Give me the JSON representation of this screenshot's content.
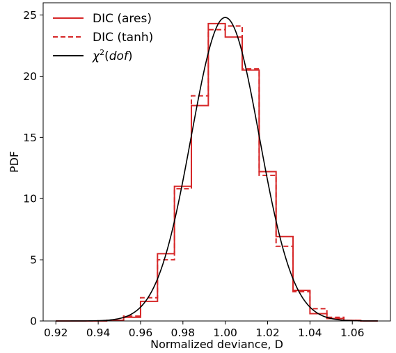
{
  "chart_data": {
    "type": "histogram",
    "xlabel": "Normalized deviance, D",
    "ylabel": "PDF",
    "xlim": [
      0.914,
      1.078
    ],
    "ylim": [
      0,
      26
    ],
    "xticks": [
      0.92,
      0.94,
      0.96,
      0.98,
      1.0,
      1.02,
      1.04,
      1.06
    ],
    "xtick_labels": [
      "0.92",
      "0.94",
      "0.96",
      "0.98",
      "1.00",
      "1.02",
      "1.04",
      "1.06"
    ],
    "yticks": [
      0,
      5,
      10,
      15,
      20,
      25
    ],
    "ytick_labels": [
      "0",
      "5",
      "10",
      "15",
      "20",
      "25"
    ],
    "legend_position": "top-left",
    "grid": false,
    "series": [
      {
        "name": "DIC (ares)",
        "kind": "step",
        "color": "#d62728",
        "dash": "solid",
        "bin_edges": [
          0.92,
          0.928,
          0.936,
          0.944,
          0.952,
          0.96,
          0.968,
          0.976,
          0.984,
          0.992,
          1.0,
          1.008,
          1.016,
          1.024,
          1.032,
          1.04,
          1.048,
          1.056,
          1.064,
          1.072
        ],
        "values": [
          0.0,
          0.0,
          0.0,
          0.05,
          0.3,
          1.6,
          5.5,
          11.0,
          17.6,
          24.3,
          23.2,
          20.5,
          12.2,
          6.9,
          2.5,
          0.6,
          0.2,
          0.05,
          0.0
        ]
      },
      {
        "name": "DIC (tanh)",
        "kind": "step",
        "color": "#d62728",
        "dash": "dashed",
        "bin_edges": [
          0.92,
          0.928,
          0.936,
          0.944,
          0.952,
          0.96,
          0.968,
          0.976,
          0.984,
          0.992,
          1.0,
          1.008,
          1.016,
          1.024,
          1.032,
          1.04,
          1.048,
          1.056,
          1.064,
          1.072
        ],
        "values": [
          0.0,
          0.0,
          0.0,
          0.05,
          0.4,
          1.9,
          5.0,
          10.8,
          18.4,
          23.8,
          24.1,
          20.6,
          11.9,
          6.1,
          2.4,
          1.0,
          0.3,
          0.05,
          0.0
        ]
      },
      {
        "name": "χ²(dof)",
        "name_parts": {
          "chi": "χ",
          "sup": "2",
          "open": "(",
          "arg": "dof",
          "close": ")"
        },
        "kind": "line",
        "color": "#000000",
        "dash": "solid",
        "peak_x": 1.0,
        "peak_y": 24.8,
        "sigma": 0.0161,
        "x_range": [
          0.92,
          1.072
        ]
      }
    ]
  }
}
